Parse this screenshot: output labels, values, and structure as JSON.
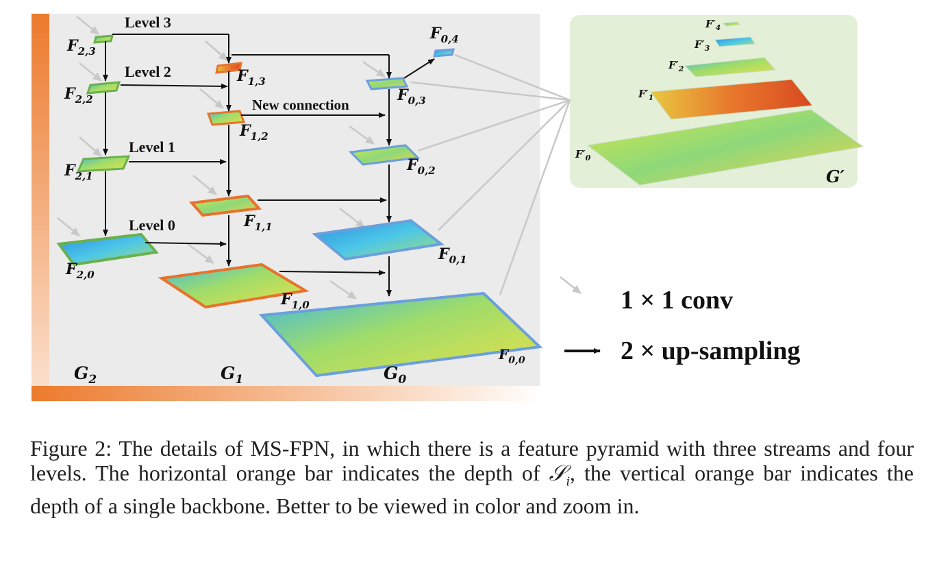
{
  "levels": [
    "Level 3",
    "Level 2",
    "Level 1",
    "Level 0"
  ],
  "new_connection": "New connection",
  "streams": {
    "g2": {
      "base": "G",
      "sub": "2"
    },
    "g1": {
      "base": "G",
      "sub": "1"
    },
    "g0": {
      "base": "G",
      "sub": "0"
    }
  },
  "features": {
    "f23": {
      "base": "F",
      "sub": "2,3"
    },
    "f22": {
      "base": "F",
      "sub": "2,2"
    },
    "f21": {
      "base": "F",
      "sub": "2,1"
    },
    "f20": {
      "base": "F",
      "sub": "2,0"
    },
    "f13": {
      "base": "F",
      "sub": "1,3"
    },
    "f12": {
      "base": "F",
      "sub": "1,2"
    },
    "f11": {
      "base": "F",
      "sub": "1,1"
    },
    "f10": {
      "base": "F",
      "sub": "1,0"
    },
    "f04": {
      "base": "F",
      "sub": "0,4"
    },
    "f03": {
      "base": "F",
      "sub": "0,3"
    },
    "f02": {
      "base": "F",
      "sub": "0,2"
    },
    "f01": {
      "base": "F",
      "sub": "0,1"
    },
    "f00": {
      "base": "F",
      "sub": "0,0"
    }
  },
  "output_pyramid": {
    "items": [
      {
        "base": "F′",
        "sub": "4"
      },
      {
        "base": "F′",
        "sub": "3"
      },
      {
        "base": "F′",
        "sub": "2"
      },
      {
        "base": "F′",
        "sub": "1"
      },
      {
        "base": "F′",
        "sub": "0"
      }
    ],
    "name": "G′"
  },
  "legend": {
    "conv": "1 × 1 conv",
    "upsample": "2 × up-sampling"
  },
  "caption": {
    "part1": "Figure 2: The details of MS-FPN, in which there is a feature pyramid with three streams and four levels. The horizontal orange bar indicates the depth of ",
    "math": "𝒮",
    "math_sub": "i",
    "part2": ", the vertical orange bar indicates the depth of a single backbone. Better to be viewed in color and zoom in."
  },
  "colors": {
    "panel_bg": "#ebebeb",
    "orange": "#ec7a2c",
    "green_border": "#6ab04c",
    "orange_border": "#e8722c",
    "blue_border": "#6a9fdc",
    "output_bg": "#e4efd8"
  }
}
